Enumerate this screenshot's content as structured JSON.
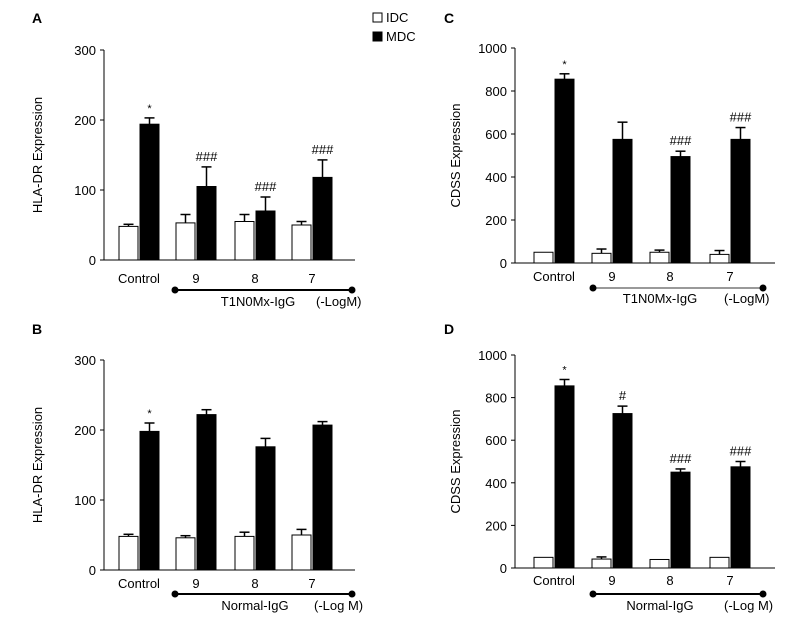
{
  "legend": {
    "items": [
      {
        "name": "IDC",
        "fill": "#ffffff"
      },
      {
        "name": "MDC",
        "fill": "#000000"
      }
    ]
  },
  "chart_data": [
    {
      "panel": "A",
      "type": "bar",
      "ylabel": "HLA-DR Expression",
      "ylim": [
        0,
        300
      ],
      "yticks": [
        0,
        100,
        200,
        300
      ],
      "categories": [
        "Control",
        "9",
        "8",
        "7"
      ],
      "series": [
        {
          "name": "IDC",
          "values": [
            48,
            53,
            55,
            50
          ],
          "errors": [
            3,
            12,
            10,
            5
          ]
        },
        {
          "name": "MDC",
          "values": [
            194,
            105,
            70,
            118
          ],
          "errors": [
            9,
            28,
            20,
            25
          ]
        }
      ],
      "annotations": [
        "*",
        "###",
        "###",
        "###"
      ],
      "group_label": "T1N0Mx-IgG",
      "unit_label": "(-LogM)"
    },
    {
      "panel": "C",
      "type": "bar",
      "ylabel": "CDSS Expression",
      "ylim": [
        0,
        1000
      ],
      "yticks": [
        0,
        200,
        400,
        600,
        800,
        1000
      ],
      "categories": [
        "Control",
        "9",
        "8",
        "7"
      ],
      "series": [
        {
          "name": "IDC",
          "values": [
            50,
            45,
            50,
            40
          ],
          "errors": [
            0,
            20,
            10,
            18
          ]
        },
        {
          "name": "MDC",
          "values": [
            855,
            575,
            495,
            575
          ],
          "errors": [
            25,
            80,
            25,
            55
          ]
        }
      ],
      "annotations": [
        "*",
        "",
        "###",
        "###"
      ],
      "group_label": "T1N0Mx-IgG",
      "unit_label": "(-LogM)"
    },
    {
      "panel": "B",
      "type": "bar",
      "ylabel": "HLA-DR Expression",
      "ylim": [
        0,
        300
      ],
      "yticks": [
        0,
        100,
        200,
        300
      ],
      "categories": [
        "Control",
        "9",
        "8",
        "7"
      ],
      "series": [
        {
          "name": "IDC",
          "values": [
            48,
            46,
            48,
            50
          ],
          "errors": [
            3,
            3,
            6,
            8
          ]
        },
        {
          "name": "MDC",
          "values": [
            198,
            222,
            176,
            207
          ],
          "errors": [
            12,
            7,
            12,
            5
          ]
        }
      ],
      "annotations": [
        "*",
        "",
        "",
        ""
      ],
      "group_label": "Normal-IgG",
      "unit_label": "(-Log M)"
    },
    {
      "panel": "D",
      "type": "bar",
      "ylabel": "CDSS Expression",
      "ylim": [
        0,
        1000
      ],
      "yticks": [
        0,
        200,
        400,
        600,
        800,
        1000
      ],
      "categories": [
        "Control",
        "9",
        "8",
        "7"
      ],
      "series": [
        {
          "name": "IDC",
          "values": [
            50,
            42,
            40,
            50
          ],
          "errors": [
            0,
            10,
            0,
            0
          ]
        },
        {
          "name": "MDC",
          "values": [
            855,
            725,
            450,
            475
          ],
          "errors": [
            30,
            35,
            15,
            25
          ]
        }
      ],
      "annotations": [
        "*",
        "#",
        "###",
        "###"
      ],
      "group_label": "Normal-IgG",
      "unit_label": "(-Log M)"
    }
  ]
}
